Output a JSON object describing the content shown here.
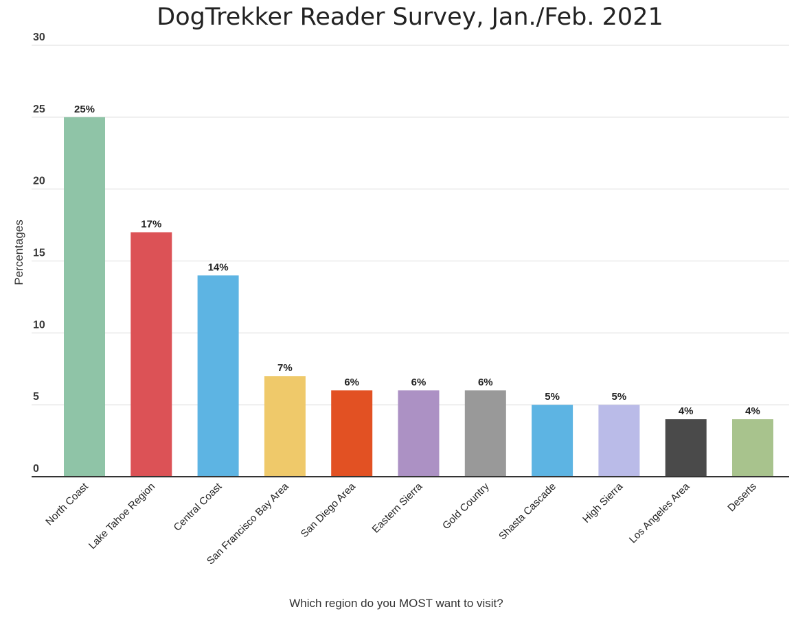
{
  "chart_data": {
    "type": "bar",
    "title": "DogTrekker Reader Survey, Jan./Feb. 2021",
    "xlabel": "Which region do you MOST want to visit?",
    "ylabel": "Percentages",
    "ylim": [
      0,
      30
    ],
    "yticks": [
      0,
      5,
      10,
      15,
      20,
      25,
      30
    ],
    "grid": true,
    "legend": "none",
    "categories": [
      "North Coast",
      "Lake Tahoe Region",
      "Central Coast",
      "San Francisco Bay Area",
      "San Diego Area",
      "Eastern Sierra",
      "Gold Country",
      "Shasta Cascade",
      "High Sierra",
      "Los Angeles Area",
      "Deserts"
    ],
    "values": [
      25,
      17,
      14,
      7,
      6,
      6,
      6,
      5,
      5,
      4,
      4
    ],
    "data_labels": [
      "25%",
      "17%",
      "14%",
      "7%",
      "6%",
      "6%",
      "6%",
      "5%",
      "5%",
      "4%",
      "4%"
    ],
    "colors": [
      "#8fc4a7",
      "#dc5256",
      "#5db4e3",
      "#efc96a",
      "#e25123",
      "#ac91c4",
      "#999999",
      "#5db4e3",
      "#babbe8",
      "#4a4a4a",
      "#a8c38d"
    ]
  }
}
